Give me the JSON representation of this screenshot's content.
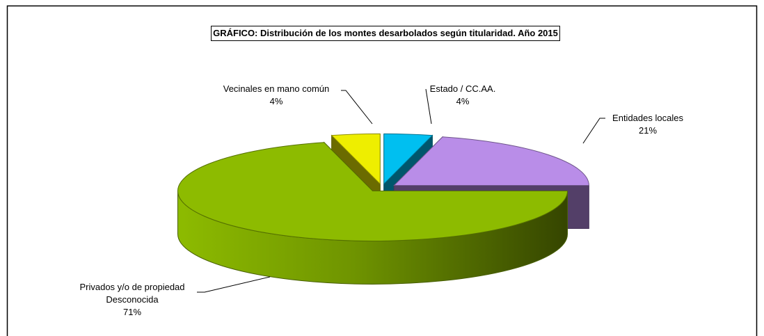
{
  "chart_data": {
    "type": "pie3d",
    "title": "GRÁFICO: Distribución de los montes desarbolados según titularidad. Año 2015",
    "categories": [
      "Estado / CC.AA.",
      "Entidades locales",
      "Privados y/o de propiedad Desconocida",
      "Vecinales en mano común"
    ],
    "values": [
      4,
      21,
      71,
      4
    ],
    "value_labels": [
      "4%",
      "21%",
      "71%",
      "4%"
    ],
    "colors": [
      "#00bff0",
      "#b98de8",
      "#8dbb00",
      "#eeee00"
    ]
  }
}
